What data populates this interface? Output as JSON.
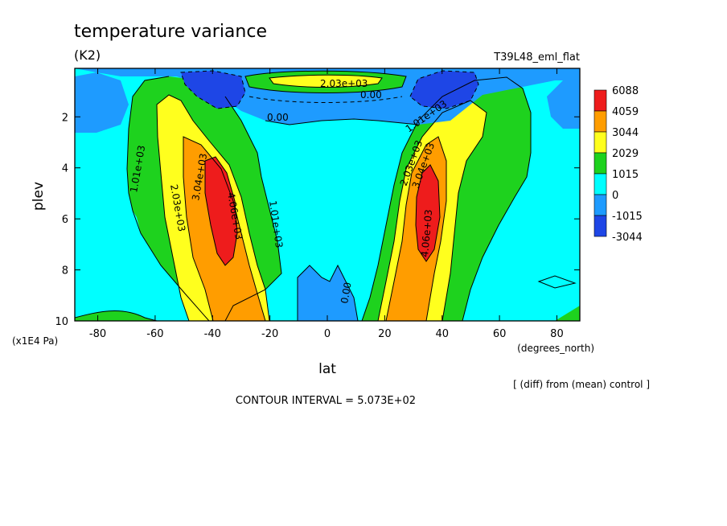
{
  "chart_data": {
    "type": "contour",
    "title": "temperature variance",
    "units": "(K2)",
    "experiment": "T39L48_eml_flat",
    "xlabel": "lat",
    "xunits": "(degrees_north)",
    "ylabel": "plev",
    "yunits": "(x1E4 Pa)",
    "xlim": [
      -88,
      88
    ],
    "ylim": [
      10,
      0.1
    ],
    "x_ticks": [
      "-80",
      "-60",
      "-40",
      "-20",
      "0",
      "20",
      "40",
      "60",
      "80"
    ],
    "y_ticks": [
      "2",
      "4",
      "6",
      "8",
      "10"
    ],
    "x_tick_values": [
      -80,
      -60,
      -40,
      -20,
      0,
      20,
      40,
      60,
      80
    ],
    "y_tick_values": [
      2,
      4,
      6,
      8,
      10
    ],
    "colorbar": {
      "labels": [
        "6088",
        "4059",
        "3044",
        "2029",
        "1015",
        "0",
        "-1015",
        "-3044"
      ],
      "colors": [
        "#ee1c1c",
        "#ff9d00",
        "#ffff1e",
        "#1ed21e",
        "#00ffff",
        "#1e9bff",
        "#1e46e6"
      ]
    },
    "contour_labels": [
      "2.03e+03",
      "0.00",
      "0.00",
      "1.01e+03",
      "1.01e+03",
      "2.03e+03",
      "3.04e+03",
      "4.06e+03",
      "1.01e+03",
      "0.00",
      "2.03e+03",
      "3.04e+03",
      "4.06e+03"
    ],
    "note": "[ (diff) from (mean) control ]",
    "contour_interval": "CONTOUR INTERVAL = 5.073E+02"
  }
}
